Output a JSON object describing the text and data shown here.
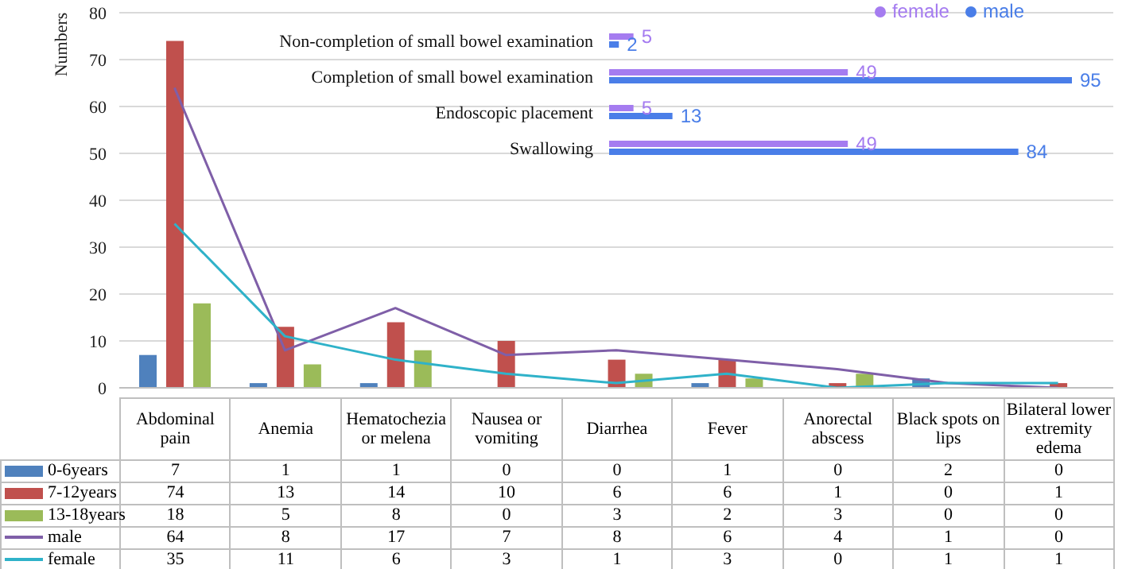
{
  "chart_data": [
    {
      "type": "bar",
      "ylabel": "Numbers",
      "categories": [
        "Abdominal pain",
        "Anemia",
        "Hematochezia or melena",
        "Nausea or vomiting",
        "Diarrhea",
        "Fever",
        "Anorectal abscess",
        "Black spots on lips",
        "Bilateral lower extremity edema"
      ],
      "series": [
        {
          "name": "0-6years",
          "color": "#4f81bd",
          "values": [
            7,
            1,
            1,
            0,
            0,
            1,
            0,
            2,
            0
          ]
        },
        {
          "name": "7-12years",
          "color": "#c0504d",
          "values": [
            74,
            13,
            14,
            10,
            6,
            6,
            1,
            0,
            1
          ]
        },
        {
          "name": "13-18years",
          "color": "#9bbb59",
          "values": [
            18,
            5,
            8,
            0,
            3,
            2,
            3,
            0,
            0
          ]
        },
        {
          "name": "male",
          "type": "line",
          "color": "#7f5fa8",
          "values": [
            64,
            8,
            17,
            7,
            8,
            6,
            4,
            1,
            0
          ]
        },
        {
          "name": "female",
          "type": "line",
          "color": "#2fb2c9",
          "values": [
            35,
            11,
            6,
            3,
            1,
            3,
            0,
            1,
            1
          ]
        }
      ],
      "ylim": [
        0,
        80
      ],
      "yticks": [
        0,
        10,
        20,
        30,
        40,
        50,
        60,
        70,
        80
      ],
      "grid": "y",
      "legend": "bottom left",
      "data_labels": true,
      "marker": "none"
    },
    {
      "type": "bar",
      "orientation": "horizontal",
      "categories": [
        "Non-completion of small bowel examination",
        "Completion of small bowel examination",
        "Endoscopic placement",
        "Swallowing"
      ],
      "series": [
        {
          "name": "female",
          "color": "#a57cf0",
          "values": [
            5,
            49,
            5,
            49
          ]
        },
        {
          "name": "male",
          "color": "#4a7ee8",
          "values": [
            2,
            95,
            13,
            84
          ]
        }
      ],
      "data_labels": true,
      "legend": "top right"
    }
  ]
}
